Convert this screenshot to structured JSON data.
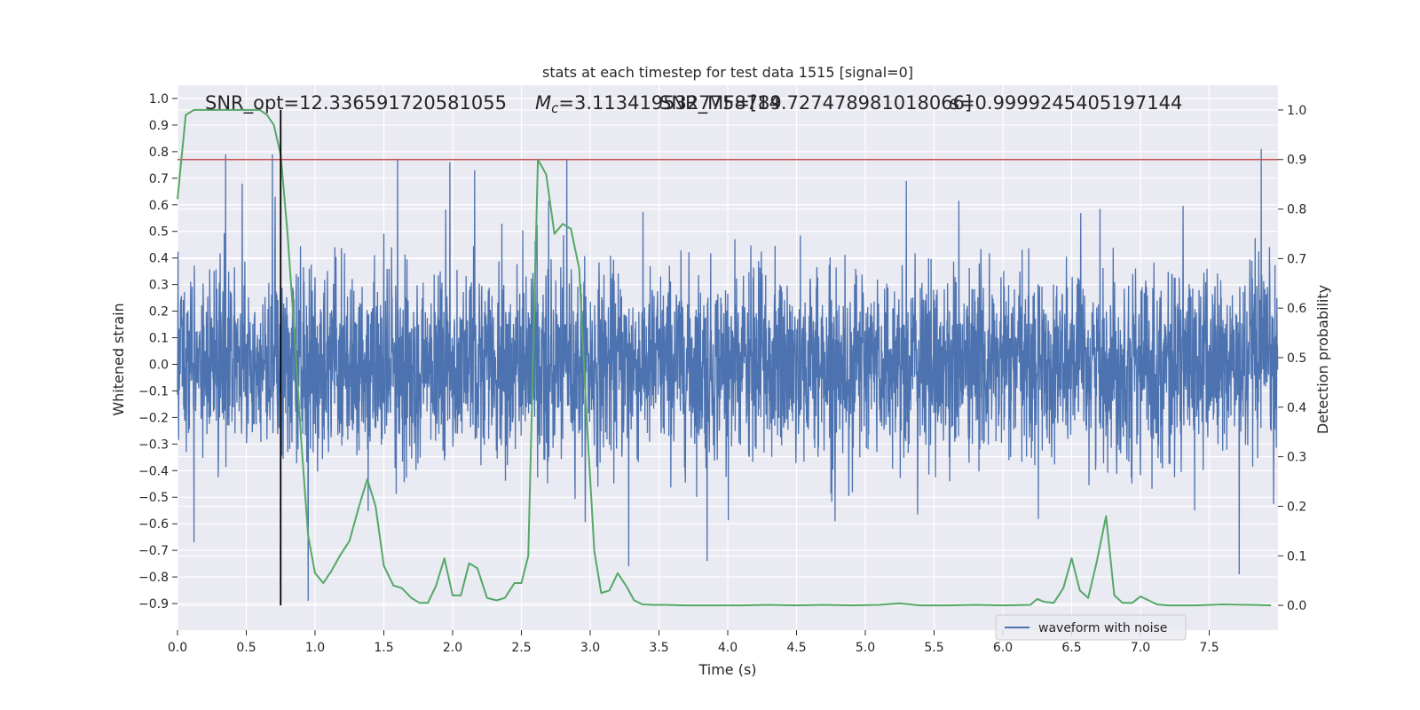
{
  "chart_data": {
    "type": "line",
    "title": "stats at each timestep for test data 1515 [signal=0]",
    "xlabel": "Time (s)",
    "ylabel_left": "Whitened strain",
    "ylabel_right": "Detection probability",
    "xlim": [
      0.0,
      8.0
    ],
    "ylim_left": [
      -1.0,
      1.05
    ],
    "ylim_right": [
      -0.05,
      1.05
    ],
    "xticks": [
      0.0,
      0.5,
      1.0,
      1.5,
      2.0,
      2.5,
      3.0,
      3.5,
      4.0,
      4.5,
      5.0,
      5.5,
      6.0,
      6.5,
      7.0,
      7.5
    ],
    "xtick_labels": [
      "0.0",
      "0.5",
      "1.0",
      "1.5",
      "2.0",
      "2.5",
      "3.0",
      "3.5",
      "4.0",
      "4.5",
      "5.0",
      "5.5",
      "6.0",
      "6.5",
      "7.0",
      "7.5"
    ],
    "yticks_left": [
      -0.9,
      -0.8,
      -0.7,
      -0.6,
      -0.5,
      -0.4,
      -0.3,
      -0.2,
      -0.1,
      0.0,
      0.1,
      0.2,
      0.3,
      0.4,
      0.5,
      0.6,
      0.7,
      0.8,
      0.9,
      1.0
    ],
    "ytick_labels_left": [
      "−0.9",
      "−0.8",
      "−0.7",
      "−0.6",
      "−0.5",
      "−0.4",
      "−0.3",
      "−0.2",
      "−0.1",
      "0.0",
      "0.1",
      "0.2",
      "0.3",
      "0.4",
      "0.5",
      "0.6",
      "0.7",
      "0.8",
      "0.9",
      "1.0"
    ],
    "yticks_right": [
      0.0,
      0.1,
      0.2,
      0.3,
      0.4,
      0.5,
      0.6,
      0.7,
      0.8,
      0.9,
      1.0
    ],
    "ytick_labels_right": [
      "0.0",
      "0.1",
      "0.2",
      "0.3",
      "0.4",
      "0.5",
      "0.6",
      "0.7",
      "0.8",
      "0.9",
      "1.0"
    ],
    "grid": true,
    "legend": {
      "placement": "bottom-right",
      "entries": [
        "waveform with noise"
      ]
    },
    "annotations": {
      "snr_opt": "SNR_opt=12.336591720581055",
      "mc_symbol": "M",
      "mc_sub": "c",
      "mc_value": "=3.1134195327758789",
      "snr_mf": "SNR_MF=[14.727478981018066]",
      "s_value": "s=0.9999245405197144"
    },
    "vertical_marker_x": 0.75,
    "threshold_right": 0.9,
    "waveform_noise": {
      "name": "waveform with noise",
      "color": "#4c72b0",
      "typical_amplitude": 0.35,
      "spike_peaks": [
        {
          "x": 0.35,
          "y": 0.79
        },
        {
          "x": 0.47,
          "y": 0.68
        },
        {
          "x": 0.69,
          "y": 0.79
        },
        {
          "x": 0.71,
          "y": 0.63
        },
        {
          "x": 1.6,
          "y": 0.77
        },
        {
          "x": 1.98,
          "y": 0.76
        },
        {
          "x": 2.16,
          "y": 0.73
        },
        {
          "x": 2.83,
          "y": 0.77
        },
        {
          "x": 5.3,
          "y": 0.69
        },
        {
          "x": 7.88,
          "y": 0.81
        },
        {
          "x": 0.95,
          "y": -0.89
        },
        {
          "x": 7.72,
          "y": -0.79
        },
        {
          "x": 0.12,
          "y": -0.67
        },
        {
          "x": 3.28,
          "y": -0.76
        },
        {
          "x": 3.85,
          "y": -0.74
        }
      ]
    },
    "probability": {
      "color": "#55a868",
      "x": [
        0.0,
        0.06,
        0.12,
        0.2,
        0.3,
        0.4,
        0.5,
        0.6,
        0.65,
        0.7,
        0.75,
        0.8,
        0.85,
        0.9,
        0.95,
        1.0,
        1.06,
        1.12,
        1.18,
        1.25,
        1.32,
        1.38,
        1.44,
        1.5,
        1.57,
        1.63,
        1.7,
        1.76,
        1.82,
        1.88,
        1.94,
        2.0,
        2.06,
        2.12,
        2.18,
        2.25,
        2.32,
        2.38,
        2.45,
        2.5,
        2.55,
        2.62,
        2.68,
        2.74,
        2.8,
        2.86,
        2.92,
        2.97,
        3.03,
        3.08,
        3.14,
        3.2,
        3.26,
        3.32,
        3.38,
        3.45,
        3.55,
        3.7,
        3.9,
        4.1,
        4.3,
        4.5,
        4.7,
        4.9,
        5.1,
        5.25,
        5.4,
        5.6,
        5.8,
        6.0,
        6.2,
        6.25,
        6.3,
        6.37,
        6.44,
        6.5,
        6.56,
        6.62,
        6.68,
        6.75,
        6.81,
        6.87,
        6.94,
        7.0,
        7.06,
        7.12,
        7.2,
        7.4,
        7.6,
        7.8,
        7.95
      ],
      "y": [
        0.82,
        0.99,
        1.0,
        1.0,
        1.0,
        1.0,
        1.0,
        1.0,
        0.99,
        0.97,
        0.91,
        0.75,
        0.55,
        0.33,
        0.14,
        0.065,
        0.045,
        0.07,
        0.1,
        0.13,
        0.2,
        0.255,
        0.2,
        0.08,
        0.04,
        0.035,
        0.015,
        0.005,
        0.005,
        0.04,
        0.095,
        0.02,
        0.02,
        0.085,
        0.075,
        0.015,
        0.01,
        0.015,
        0.045,
        0.045,
        0.1,
        0.9,
        0.87,
        0.75,
        0.77,
        0.76,
        0.68,
        0.4,
        0.11,
        0.025,
        0.03,
        0.065,
        0.04,
        0.01,
        0.002,
        0.001,
        0.001,
        0.0,
        0.0,
        0.0,
        0.001,
        0.0,
        0.001,
        0.0,
        0.001,
        0.004,
        0.0,
        0.0,
        0.001,
        0.0,
        0.001,
        0.013,
        0.007,
        0.005,
        0.035,
        0.095,
        0.03,
        0.015,
        0.085,
        0.18,
        0.02,
        0.005,
        0.005,
        0.018,
        0.01,
        0.002,
        0.0,
        0.0,
        0.002,
        0.001,
        0.0
      ]
    }
  }
}
